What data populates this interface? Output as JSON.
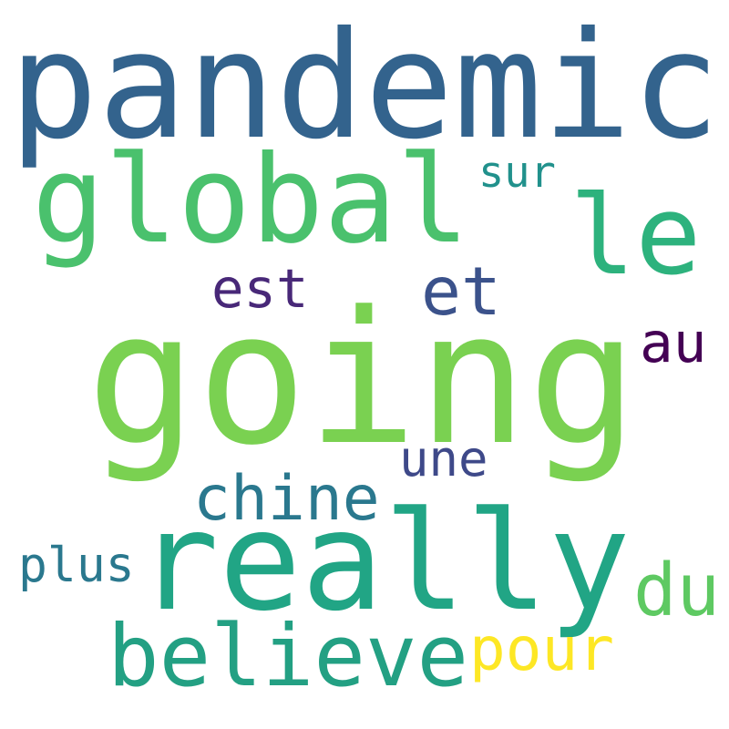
{
  "words": [
    {
      "text": "pandemic",
      "color": "#33638d"
    },
    {
      "text": "global",
      "color": "#4ac16d"
    },
    {
      "text": "le",
      "color": "#2db27d"
    },
    {
      "text": "sur",
      "color": "#21918c"
    },
    {
      "text": "est",
      "color": "#482878"
    },
    {
      "text": "et",
      "color": "#3b528b"
    },
    {
      "text": "au",
      "color": "#440154"
    },
    {
      "text": "going",
      "color": "#7ad151"
    },
    {
      "text": "une",
      "color": "#3e4989"
    },
    {
      "text": "chine",
      "color": "#2a788e"
    },
    {
      "text": "really",
      "color": "#21a585"
    },
    {
      "text": "plus",
      "color": "#2a788e"
    },
    {
      "text": "du",
      "color": "#5ec962"
    },
    {
      "text": "believe",
      "color": "#23a083"
    },
    {
      "text": "pour",
      "color": "#fde725"
    }
  ]
}
